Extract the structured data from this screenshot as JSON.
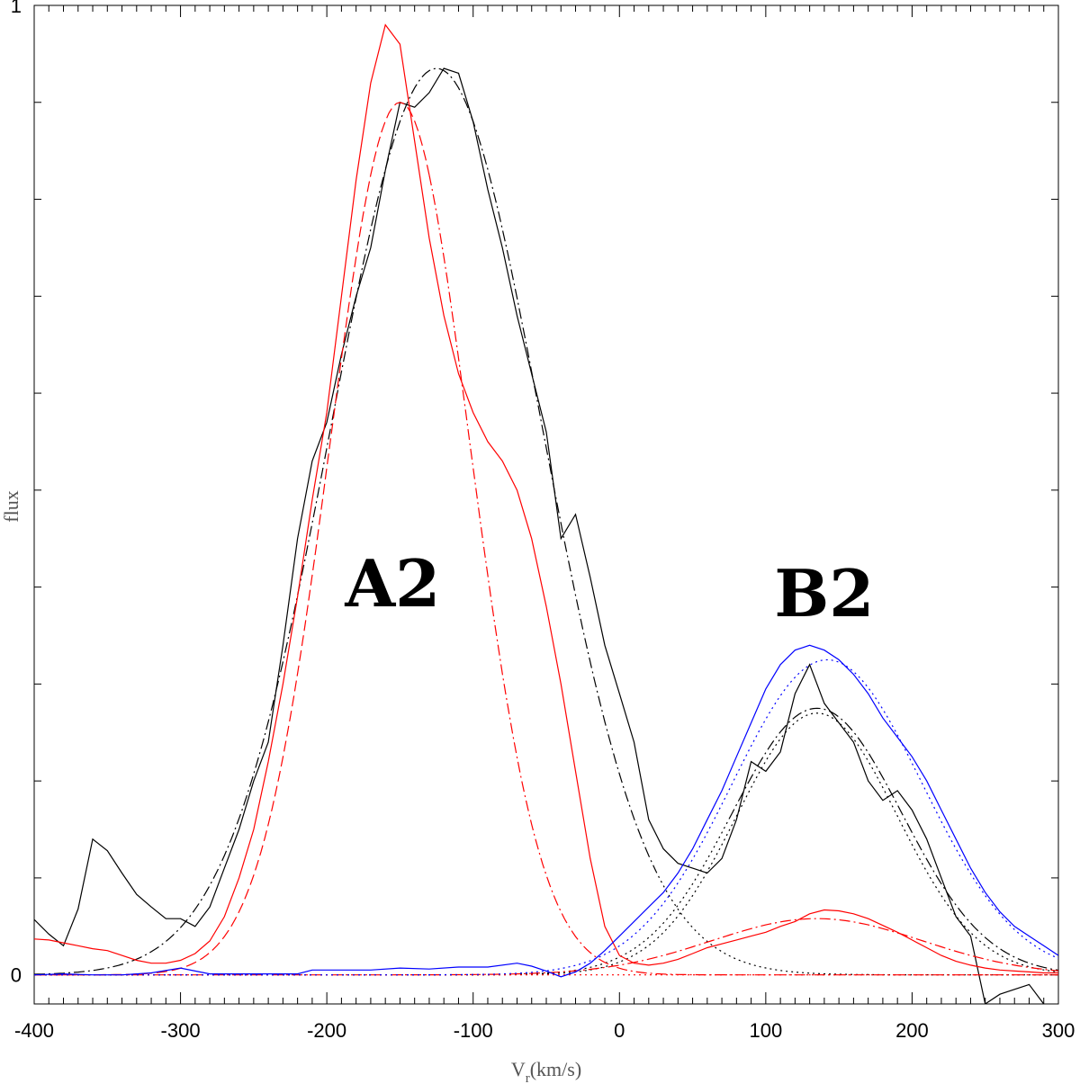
{
  "chart_data": {
    "type": "line",
    "xlabel": "V_r(km/s)",
    "xlabel_main": "V",
    "xlabel_sub": "r",
    "xlabel_rest": "(km/s)",
    "ylabel": "flux",
    "xlim": [
      -400,
      300
    ],
    "ylim": [
      -0.03,
      1.0
    ],
    "x_ticks": [
      -400,
      -300,
      -200,
      -100,
      0,
      100,
      200,
      300
    ],
    "y_tick_labels": [
      {
        "value": 0,
        "text": "0"
      },
      {
        "value": 1,
        "text": "1"
      }
    ],
    "annotations": [
      {
        "text": "A2",
        "x": -155,
        "y": 0.38
      },
      {
        "text": "B2",
        "x": 140,
        "y": 0.37
      }
    ],
    "colors": {
      "black": "#000000",
      "red": "#ff0000",
      "blue": "#0000ff"
    },
    "series": [
      {
        "color": "#000000",
        "style": "solid",
        "points": [
          [
            -400,
            0.057
          ],
          [
            -390,
            0.042
          ],
          [
            -380,
            0.03
          ],
          [
            -370,
            0.068
          ],
          [
            -360,
            0.14
          ],
          [
            -350,
            0.128
          ],
          [
            -340,
            0.105
          ],
          [
            -330,
            0.083
          ],
          [
            -320,
            0.07
          ],
          [
            -310,
            0.058
          ],
          [
            -300,
            0.058
          ],
          [
            -290,
            0.05
          ],
          [
            -280,
            0.07
          ],
          [
            -270,
            0.11
          ],
          [
            -260,
            0.15
          ],
          [
            -250,
            0.2
          ],
          [
            -240,
            0.24
          ],
          [
            -230,
            0.34
          ],
          [
            -220,
            0.45
          ],
          [
            -210,
            0.53
          ],
          [
            -200,
            0.57
          ],
          [
            -190,
            0.64
          ],
          [
            -180,
            0.7
          ],
          [
            -170,
            0.75
          ],
          [
            -160,
            0.83
          ],
          [
            -150,
            0.9
          ],
          [
            -140,
            0.895
          ],
          [
            -130,
            0.91
          ],
          [
            -120,
            0.935
          ],
          [
            -110,
            0.93
          ],
          [
            -100,
            0.88
          ],
          [
            -90,
            0.81
          ],
          [
            -80,
            0.75
          ],
          [
            -70,
            0.68
          ],
          [
            -60,
            0.62
          ],
          [
            -50,
            0.56
          ],
          [
            -40,
            0.45
          ],
          [
            -30,
            0.475
          ],
          [
            -20,
            0.41
          ],
          [
            -10,
            0.34
          ],
          [
            0,
            0.29
          ],
          [
            10,
            0.24
          ],
          [
            20,
            0.16
          ],
          [
            30,
            0.13
          ],
          [
            40,
            0.115
          ],
          [
            50,
            0.11
          ],
          [
            60,
            0.105
          ],
          [
            70,
            0.12
          ],
          [
            80,
            0.16
          ],
          [
            90,
            0.22
          ],
          [
            100,
            0.21
          ],
          [
            110,
            0.23
          ],
          [
            120,
            0.29
          ],
          [
            130,
            0.32
          ],
          [
            140,
            0.28
          ],
          [
            150,
            0.26
          ],
          [
            160,
            0.24
          ],
          [
            170,
            0.2
          ],
          [
            180,
            0.18
          ],
          [
            190,
            0.19
          ],
          [
            200,
            0.17
          ],
          [
            210,
            0.14
          ],
          [
            220,
            0.1
          ],
          [
            230,
            0.06
          ],
          [
            240,
            0.04
          ],
          [
            250,
            -0.03
          ],
          [
            260,
            -0.02
          ],
          [
            270,
            -0.015
          ],
          [
            280,
            -0.01
          ],
          [
            290,
            -0.03
          ]
        ]
      },
      {
        "color": "#000000",
        "style": "dashdot",
        "gaussian": {
          "amp": 0.935,
          "center": -125,
          "sigma": 72
        },
        "range": [
          -400,
          25
        ]
      },
      {
        "color": "#000000",
        "style": "dotted",
        "gaussian": {
          "amp": 0.935,
          "center": -125,
          "sigma": 72
        },
        "range": [
          25,
          300
        ]
      },
      {
        "color": "#000000",
        "style": "dashdot",
        "gaussian": {
          "amp": 0.275,
          "center": 135,
          "sigma": 58
        },
        "range": [
          75,
          300
        ]
      },
      {
        "color": "#000000",
        "style": "dotted",
        "gaussian": {
          "amp": 0.275,
          "center": 135,
          "sigma": 58
        },
        "range": [
          -400,
          75
        ]
      },
      {
        "color": "#000000",
        "style": "dotted",
        "gaussian": {
          "amp": 0.27,
          "center": 135,
          "sigma": 55
        },
        "range": [
          -400,
          300
        ]
      },
      {
        "color": "#ff0000",
        "style": "solid",
        "points": [
          [
            -400,
            0.037
          ],
          [
            -390,
            0.036
          ],
          [
            -380,
            0.033
          ],
          [
            -370,
            0.03
          ],
          [
            -360,
            0.027
          ],
          [
            -350,
            0.025
          ],
          [
            -340,
            0.02
          ],
          [
            -330,
            0.015
          ],
          [
            -320,
            0.012
          ],
          [
            -310,
            0.012
          ],
          [
            -300,
            0.015
          ],
          [
            -290,
            0.022
          ],
          [
            -280,
            0.035
          ],
          [
            -270,
            0.06
          ],
          [
            -260,
            0.1
          ],
          [
            -250,
            0.15
          ],
          [
            -240,
            0.22
          ],
          [
            -230,
            0.3
          ],
          [
            -220,
            0.39
          ],
          [
            -210,
            0.49
          ],
          [
            -200,
            0.58
          ],
          [
            -190,
            0.7
          ],
          [
            -180,
            0.82
          ],
          [
            -170,
            0.92
          ],
          [
            -160,
            0.98
          ],
          [
            -150,
            0.96
          ],
          [
            -140,
            0.86
          ],
          [
            -130,
            0.76
          ],
          [
            -120,
            0.68
          ],
          [
            -110,
            0.62
          ],
          [
            -100,
            0.58
          ],
          [
            -90,
            0.55
          ],
          [
            -80,
            0.53
          ],
          [
            -70,
            0.5
          ],
          [
            -60,
            0.45
          ],
          [
            -50,
            0.38
          ],
          [
            -40,
            0.3
          ],
          [
            -30,
            0.21
          ],
          [
            -20,
            0.12
          ],
          [
            -10,
            0.05
          ],
          [
            0,
            0.02
          ],
          [
            10,
            0.012
          ],
          [
            20,
            0.01
          ],
          [
            30,
            0.012
          ],
          [
            40,
            0.016
          ],
          [
            50,
            0.022
          ],
          [
            60,
            0.028
          ],
          [
            70,
            0.032
          ],
          [
            80,
            0.036
          ],
          [
            90,
            0.04
          ],
          [
            100,
            0.044
          ],
          [
            110,
            0.05
          ],
          [
            120,
            0.055
          ],
          [
            130,
            0.063
          ],
          [
            140,
            0.067
          ],
          [
            150,
            0.066
          ],
          [
            160,
            0.063
          ],
          [
            170,
            0.058
          ],
          [
            180,
            0.051
          ],
          [
            190,
            0.044
          ],
          [
            200,
            0.036
          ],
          [
            210,
            0.028
          ],
          [
            220,
            0.02
          ],
          [
            230,
            0.014
          ],
          [
            240,
            0.01
          ],
          [
            250,
            0.007
          ],
          [
            260,
            0.005
          ],
          [
            270,
            0.004
          ],
          [
            280,
            0.003
          ],
          [
            290,
            0.002
          ],
          [
            300,
            0.002
          ]
        ]
      },
      {
        "color": "#ff0000",
        "style": "dashed",
        "gaussian": {
          "amp": 0.9,
          "center": -150,
          "sigma": 48
        },
        "range": [
          -400,
          -130
        ]
      },
      {
        "color": "#ff0000",
        "style": "dashdot",
        "gaussian": {
          "amp": 0.9,
          "center": -150,
          "sigma": 48
        },
        "range": [
          -130,
          300
        ]
      },
      {
        "color": "#ff0000",
        "style": "dashdot",
        "gaussian": {
          "amp": 0.058,
          "center": 135,
          "sigma": 72
        },
        "range": [
          -400,
          300
        ]
      },
      {
        "color": "#ff0000",
        "style": "dotted",
        "gaussian": {
          "amp": 0.0,
          "center": 0,
          "sigma": 100
        },
        "range": [
          -400,
          300
        ]
      },
      {
        "color": "#0000ff",
        "style": "solid",
        "points": [
          [
            -400,
            0.0
          ],
          [
            -380,
            0.001
          ],
          [
            -360,
            0.0
          ],
          [
            -340,
            0.0
          ],
          [
            -320,
            0.002
          ],
          [
            -300,
            0.007
          ],
          [
            -290,
            0.004
          ],
          [
            -280,
            0.001
          ],
          [
            -260,
            0.001
          ],
          [
            -240,
            0.001
          ],
          [
            -220,
            0.001
          ],
          [
            -210,
            0.005
          ],
          [
            -190,
            0.005
          ],
          [
            -170,
            0.005
          ],
          [
            -150,
            0.007
          ],
          [
            -130,
            0.006
          ],
          [
            -110,
            0.008
          ],
          [
            -90,
            0.008
          ],
          [
            -70,
            0.012
          ],
          [
            -60,
            0.009
          ],
          [
            -50,
            0.004
          ],
          [
            -40,
            -0.002
          ],
          [
            -30,
            0.003
          ],
          [
            -20,
            0.012
          ],
          [
            -10,
            0.025
          ],
          [
            0,
            0.04
          ],
          [
            10,
            0.055
          ],
          [
            20,
            0.07
          ],
          [
            30,
            0.085
          ],
          [
            40,
            0.105
          ],
          [
            50,
            0.13
          ],
          [
            60,
            0.16
          ],
          [
            70,
            0.19
          ],
          [
            80,
            0.225
          ],
          [
            90,
            0.26
          ],
          [
            100,
            0.295
          ],
          [
            110,
            0.32
          ],
          [
            120,
            0.335
          ],
          [
            130,
            0.34
          ],
          [
            140,
            0.335
          ],
          [
            150,
            0.325
          ],
          [
            160,
            0.31
          ],
          [
            170,
            0.29
          ],
          [
            180,
            0.265
          ],
          [
            190,
            0.245
          ],
          [
            200,
            0.225
          ],
          [
            210,
            0.2
          ],
          [
            220,
            0.17
          ],
          [
            230,
            0.14
          ],
          [
            240,
            0.11
          ],
          [
            250,
            0.085
          ],
          [
            260,
            0.065
          ],
          [
            270,
            0.05
          ],
          [
            280,
            0.04
          ],
          [
            290,
            0.03
          ],
          [
            300,
            0.02
          ]
        ]
      },
      {
        "color": "#0000ff",
        "style": "dotted",
        "gaussian": {
          "amp": 0.325,
          "center": 142,
          "sigma": 65
        },
        "range": [
          -400,
          300
        ]
      }
    ]
  }
}
